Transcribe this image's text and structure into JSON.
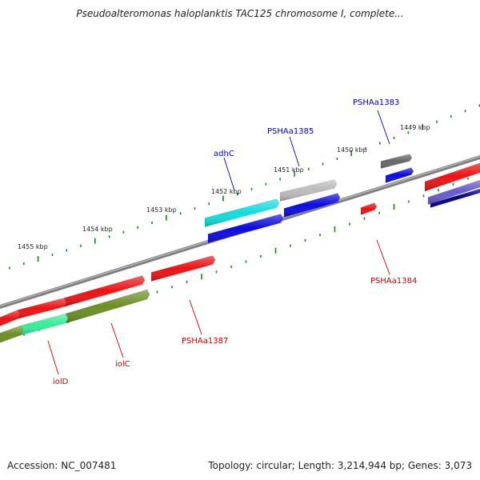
{
  "title": "Pseudoalteromonas haloplanktis TAC125 chromosome I, complete...",
  "footer": {
    "accession": "Accession: NC_007481",
    "summary": "Topology: circular; Length: 3,214,944 bp; Genes: 3,073"
  },
  "ruler_labels": [
    "1449 kbp",
    "1450 kbp",
    "1451 kbp",
    "1452 kbp",
    "1453 kbp",
    "1454 kbp",
    "1455 kbp"
  ],
  "genes": [
    {
      "name": "PSHAa1383",
      "color": "#0000bb"
    },
    {
      "name": "PSHAa1385",
      "color": "#0000bb"
    },
    {
      "name": "adhC",
      "color": "#0000bb"
    },
    {
      "name": "PSHAa1384",
      "color": "#cc0000"
    },
    {
      "name": "PSHAa1387",
      "color": "#cc0000"
    },
    {
      "name": "iolC",
      "color": "#cc0000"
    },
    {
      "name": "iolD",
      "color": "#cc0000"
    }
  ],
  "colors": {
    "backbone": "#808080",
    "tick": "#118811",
    "red": "#ee1111",
    "blue": "#0a0ae0",
    "cyan": "#11dddd",
    "light_gray": "#bbbbbb",
    "dark_gray": "#666666",
    "olive": "#6b8e23",
    "mint": "#33ee99",
    "slate": "#6a5acd",
    "navy": "#000080"
  }
}
